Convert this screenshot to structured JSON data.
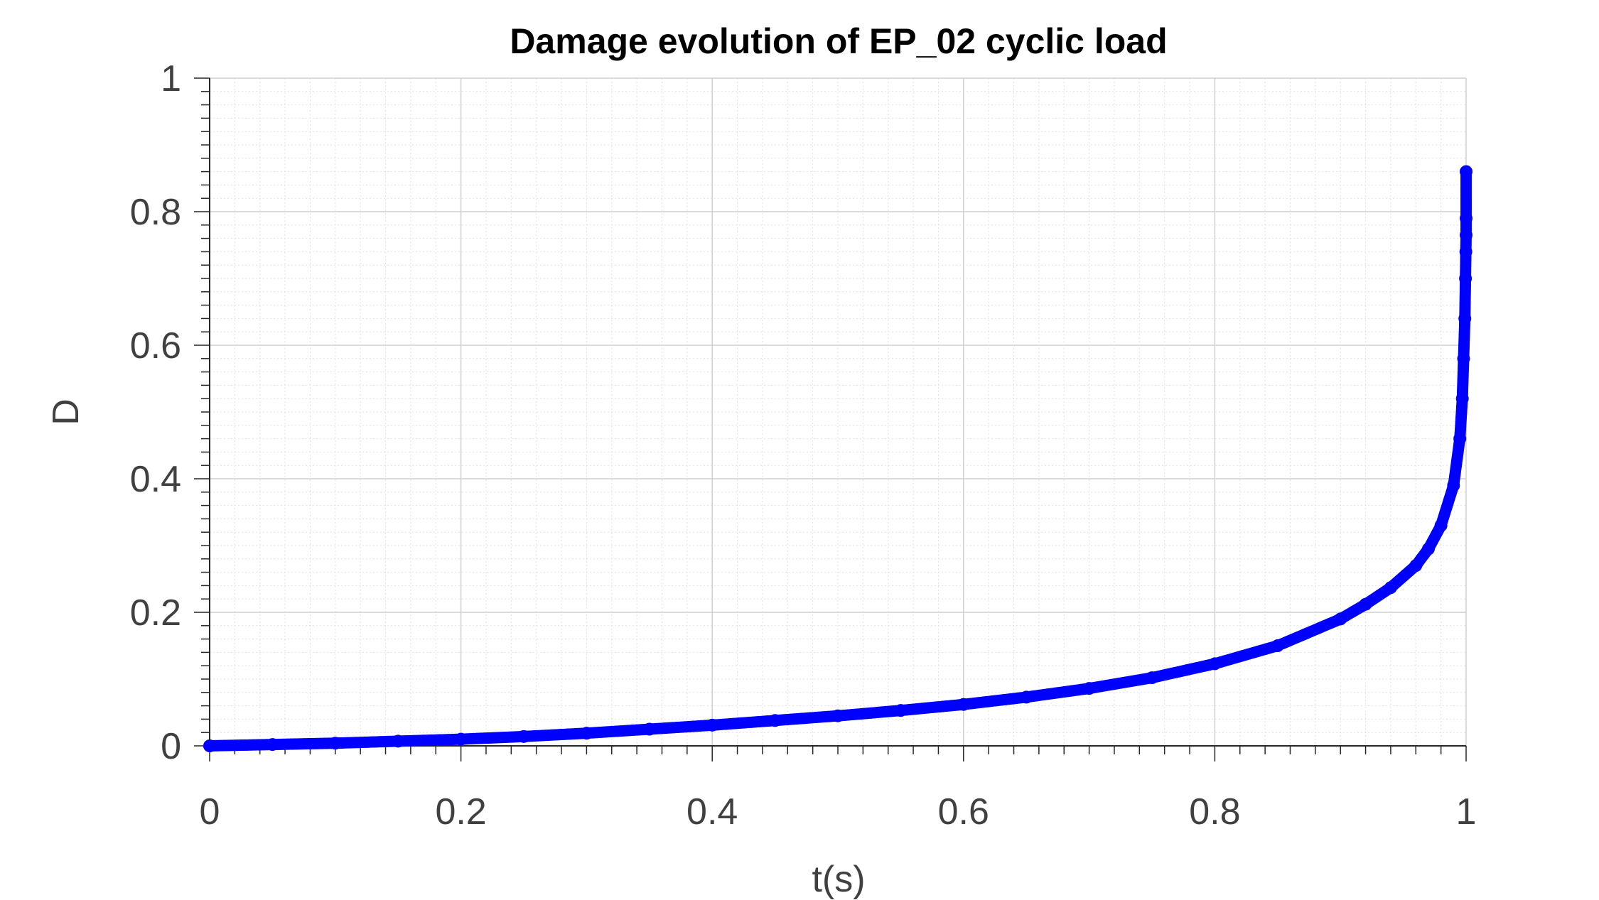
{
  "chart_data": {
    "type": "scatter",
    "title": "Damage evolution of EP_02 cyclic load",
    "xlabel": "t(s)",
    "ylabel": "D",
    "xlim": [
      0,
      1
    ],
    "ylim": [
      0,
      1
    ],
    "xticks": [
      "0",
      "0.2",
      "0.4",
      "0.6",
      "0.8",
      "1"
    ],
    "yticks": [
      "0",
      "0.2",
      "0.4",
      "0.6",
      "0.8",
      "1"
    ],
    "grid": true,
    "minor_grid": true,
    "marker_color": "#0000ff",
    "series": [
      {
        "x": [
          0,
          0.05,
          0.1,
          0.15,
          0.2,
          0.25,
          0.3,
          0.35,
          0.4,
          0.45,
          0.5,
          0.55,
          0.6,
          0.65,
          0.7,
          0.75,
          0.8,
          0.85,
          0.9,
          0.92,
          0.94,
          0.96,
          0.97,
          0.98,
          0.99,
          0.995,
          0.997,
          0.998,
          0.999,
          0.9995,
          0.9998,
          1.0,
          1.0,
          1.0
        ],
        "y": [
          0,
          0.002,
          0.004,
          0.007,
          0.01,
          0.014,
          0.019,
          0.025,
          0.031,
          0.038,
          0.045,
          0.053,
          0.062,
          0.073,
          0.086,
          0.102,
          0.123,
          0.15,
          0.19,
          0.212,
          0.237,
          0.27,
          0.295,
          0.33,
          0.39,
          0.46,
          0.52,
          0.58,
          0.64,
          0.7,
          0.74,
          0.765,
          0.79,
          0.86
        ]
      }
    ]
  }
}
